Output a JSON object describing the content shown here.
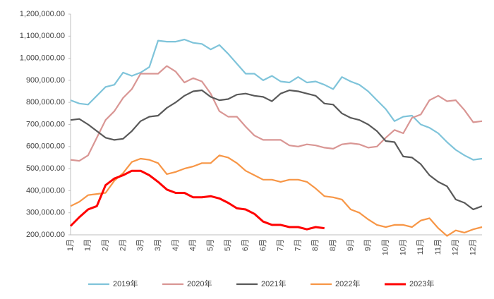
{
  "chart_data": {
    "type": "line",
    "categories": [
      "1月",
      null,
      "1月",
      null,
      "2月",
      null,
      "2月",
      null,
      "3月",
      null,
      "3月",
      null,
      "4月",
      null,
      "4月",
      null,
      "5月",
      null,
      "5月",
      null,
      "6月",
      null,
      "6月",
      null,
      "7月",
      null,
      "7月",
      null,
      "8月",
      null,
      "8月",
      null,
      "9月",
      null,
      "9月",
      null,
      "10月",
      null,
      "10月",
      null,
      "11月",
      null,
      "11月",
      null,
      "12月",
      null,
      "12月",
      null
    ],
    "series": [
      {
        "name": "2019年",
        "color": "#7fc4da",
        "values": [
          810000,
          795000,
          790000,
          830000,
          870000,
          880000,
          935000,
          920000,
          935000,
          960000,
          1080000,
          1075000,
          1075000,
          1085000,
          1070000,
          1065000,
          1040000,
          1060000,
          1020000,
          975000,
          930000,
          930000,
          900000,
          920000,
          895000,
          890000,
          915000,
          890000,
          895000,
          880000,
          860000,
          915000,
          895000,
          880000,
          850000,
          810000,
          770000,
          715000,
          735000,
          740000,
          700000,
          685000,
          660000,
          620000,
          585000,
          560000,
          540000,
          545000
        ]
      },
      {
        "name": "2020年",
        "color": "#d99694",
        "values": [
          540000,
          535000,
          560000,
          640000,
          720000,
          760000,
          820000,
          860000,
          930000,
          930000,
          930000,
          965000,
          940000,
          890000,
          910000,
          895000,
          840000,
          760000,
          735000,
          735000,
          690000,
          650000,
          630000,
          630000,
          630000,
          605000,
          600000,
          610000,
          605000,
          595000,
          590000,
          610000,
          615000,
          610000,
          595000,
          600000,
          640000,
          675000,
          660000,
          730000,
          745000,
          810000,
          830000,
          805000,
          810000,
          765000,
          710000,
          715000
        ]
      },
      {
        "name": "2021年",
        "color": "#595959",
        "values": [
          720000,
          725000,
          700000,
          670000,
          640000,
          630000,
          635000,
          670000,
          715000,
          735000,
          740000,
          775000,
          800000,
          830000,
          850000,
          855000,
          825000,
          810000,
          815000,
          835000,
          840000,
          830000,
          825000,
          805000,
          840000,
          855000,
          850000,
          840000,
          830000,
          795000,
          790000,
          750000,
          730000,
          720000,
          700000,
          670000,
          625000,
          620000,
          555000,
          550000,
          520000,
          470000,
          440000,
          420000,
          360000,
          345000,
          315000,
          330000
        ]
      },
      {
        "name": "2022年",
        "color": "#f79646",
        "values": [
          330000,
          350000,
          380000,
          385000,
          390000,
          445000,
          480000,
          530000,
          545000,
          540000,
          525000,
          475000,
          485000,
          500000,
          510000,
          525000,
          525000,
          560000,
          550000,
          525000,
          490000,
          470000,
          450000,
          450000,
          440000,
          450000,
          450000,
          440000,
          410000,
          375000,
          370000,
          360000,
          315000,
          300000,
          270000,
          245000,
          235000,
          245000,
          245000,
          235000,
          265000,
          275000,
          230000,
          195000,
          220000,
          210000,
          225000,
          235000
        ]
      },
      {
        "name": "2023年",
        "color": "#ff0000",
        "values": [
          240000,
          280000,
          315000,
          330000,
          425000,
          455000,
          470000,
          490000,
          490000,
          470000,
          440000,
          405000,
          390000,
          390000,
          370000,
          370000,
          375000,
          365000,
          345000,
          320000,
          315000,
          295000,
          260000,
          245000,
          245000,
          235000,
          235000,
          225000,
          235000,
          230000,
          null,
          null,
          null,
          null,
          null,
          null,
          null,
          null,
          null,
          null,
          null,
          null,
          null,
          null,
          null,
          null,
          null,
          null
        ]
      }
    ],
    "ylim": [
      200000,
      1200000
    ],
    "yticks": [
      {
        "value": 200000,
        "label": "200,000.00"
      },
      {
        "value": 300000,
        "label": "300,000.00"
      },
      {
        "value": 400000,
        "label": "400,000.00"
      },
      {
        "value": 500000,
        "label": "500,000.00"
      },
      {
        "value": 600000,
        "label": "600,000.00"
      },
      {
        "value": 700000,
        "label": "700,000.00"
      },
      {
        "value": 800000,
        "label": "800,000.00"
      },
      {
        "value": 900000,
        "label": "900,000.00"
      },
      {
        "value": 1000000,
        "label": "1,000,000.00"
      },
      {
        "value": 1100000,
        "label": "1,100,000.00"
      },
      {
        "value": 1200000,
        "label": "1,200,000.00"
      }
    ],
    "legend": "bottom"
  }
}
